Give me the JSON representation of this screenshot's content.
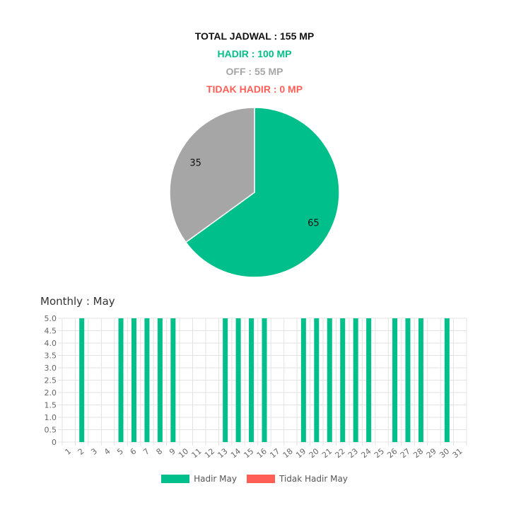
{
  "summary": {
    "total": "TOTAL JADWAL : 155 MP",
    "hadir": "HADIR : 100 MP",
    "off": "OFF : 55 MP",
    "tidak_hadir": "TIDAK HADIR : 0 MP"
  },
  "colors": {
    "hadir": "#00bf8a",
    "off": "#a6a6a6",
    "tidak_hadir": "#ff5e57"
  },
  "monthly_title": "Monthly : May",
  "legend": [
    {
      "label": "Hadir May",
      "color": "#00bf8a"
    },
    {
      "label": "Tidak Hadir May",
      "color": "#ff5e57"
    }
  ],
  "chart_data": [
    {
      "type": "pie",
      "slices": [
        {
          "value": 65,
          "color": "#00bf8a"
        },
        {
          "value": 35,
          "color": "#a6a6a6"
        }
      ]
    },
    {
      "type": "bar",
      "title": "Monthly : May",
      "categories": [
        "1",
        "2",
        "3",
        "4",
        "5",
        "6",
        "7",
        "8",
        "9",
        "10",
        "11",
        "12",
        "13",
        "14",
        "15",
        "16",
        "17",
        "18",
        "19",
        "20",
        "21",
        "22",
        "23",
        "24",
        "25",
        "26",
        "27",
        "28",
        "29",
        "30",
        "31"
      ],
      "series": [
        {
          "name": "Hadir May",
          "color": "#00bf8a",
          "values": [
            0,
            5,
            0,
            0,
            5,
            5,
            5,
            5,
            5,
            0,
            0,
            0,
            5,
            5,
            5,
            5,
            0,
            0,
            5,
            5,
            5,
            5,
            5,
            5,
            0,
            5,
            5,
            5,
            0,
            5,
            0
          ]
        },
        {
          "name": "Tidak Hadir May",
          "color": "#ff5e57",
          "values": [
            0,
            0,
            0,
            0,
            0,
            0,
            0,
            0,
            0,
            0,
            0,
            0,
            0,
            0,
            0,
            0,
            0,
            0,
            0,
            0,
            0,
            0,
            0,
            0,
            0,
            0,
            0,
            0,
            0,
            0,
            0
          ]
        }
      ],
      "y_ticks": [
        "0",
        "0.5",
        "1.0",
        "1.5",
        "2.0",
        "2.5",
        "3.0",
        "3.5",
        "4.0",
        "4.5",
        "5.0"
      ],
      "ylim": [
        0,
        5
      ],
      "grid": true,
      "legend_position": "bottom"
    }
  ]
}
